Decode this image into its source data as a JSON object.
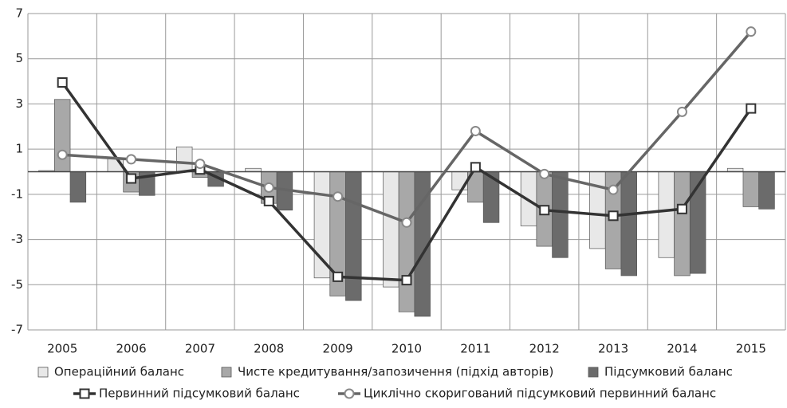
{
  "chart_data": {
    "type": "bar",
    "categories": [
      "2005",
      "2006",
      "2007",
      "2008",
      "2009",
      "2010",
      "2011",
      "2012",
      "2013",
      "2014",
      "2015"
    ],
    "series": [
      {
        "name": "Операційний баланс",
        "type": "bar",
        "color": "#e8e8e8",
        "values": [
          0.05,
          0.6,
          1.1,
          0.15,
          -4.7,
          -5.1,
          -0.8,
          -2.4,
          -3.4,
          -3.8,
          0.15
        ]
      },
      {
        "name": "Чисте кредитування/запозичення (підхід авторів)",
        "type": "bar",
        "color": "#a8a8a8",
        "values": [
          3.2,
          -0.9,
          -0.25,
          -1.4,
          -5.5,
          -6.2,
          -1.35,
          -3.3,
          -4.3,
          -4.6,
          -1.55
        ]
      },
      {
        "name": "Підсумковий баланс",
        "type": "bar",
        "color": "#6b6b6b",
        "values": [
          -1.35,
          -1.05,
          -0.65,
          -1.7,
          -5.7,
          -6.4,
          -2.25,
          -3.8,
          -4.6,
          -4.5,
          -1.65
        ]
      },
      {
        "name": "Первинний підсумковий баланс",
        "type": "line",
        "marker": "square",
        "color": "#333333",
        "values": [
          3.95,
          -0.3,
          0.1,
          -1.3,
          -4.65,
          -4.8,
          0.2,
          -1.7,
          -1.95,
          -1.65,
          2.8
        ]
      },
      {
        "name": "Циклічно скоригований підсумковий первинний баланс",
        "type": "line",
        "marker": "circle",
        "color": "#666666",
        "values": [
          0.75,
          0.55,
          0.35,
          -0.7,
          -1.1,
          -2.25,
          1.8,
          -0.1,
          -0.8,
          2.65,
          6.2
        ]
      }
    ],
    "ylim": [
      -7,
      7
    ],
    "yticks": [
      -7,
      -5,
      -3,
      -1,
      1,
      3,
      5,
      7
    ],
    "grid": true
  }
}
